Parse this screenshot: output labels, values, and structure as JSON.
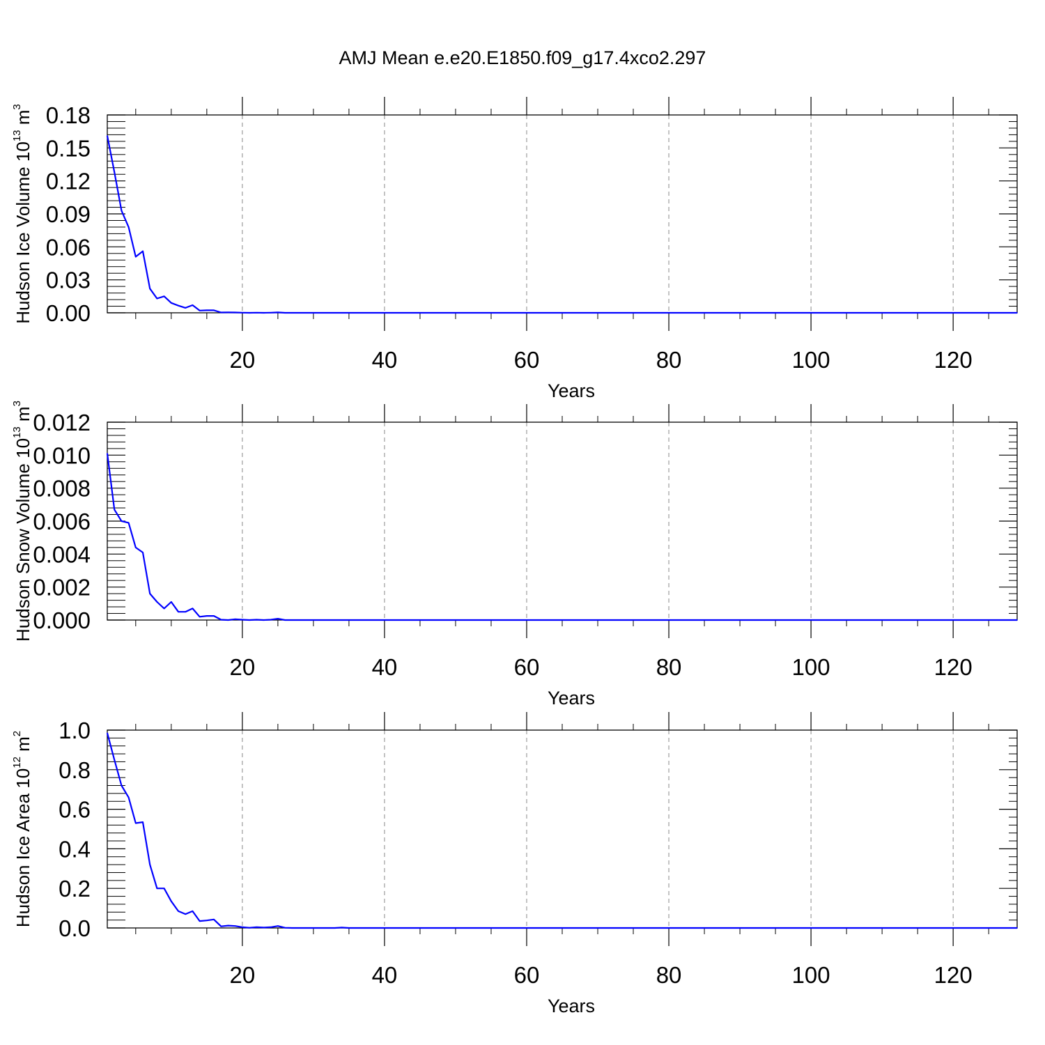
{
  "figure": {
    "title": "AMJ Mean e.e20.E1850.f09_g17.4xco2.297"
  },
  "colors": {
    "line": "#0000ff",
    "axes": "#000000",
    "grid": "#888888"
  },
  "chart_data": [
    {
      "type": "line",
      "xlabel": "Years",
      "ylabel": "Hudson Ice Volume 10",
      "ylabel_exponent": "13",
      "ylabel_unit": " m",
      "ylabel_unit_exponent": "3",
      "xlim": [
        1,
        129
      ],
      "ylim": [
        0,
        0.18
      ],
      "xticks": [
        20,
        40,
        60,
        80,
        100,
        120
      ],
      "yticks": [
        0,
        0.03,
        0.06,
        0.09,
        0.12,
        0.15,
        0.18
      ],
      "ytick_labels": [
        "0.00",
        "0.03",
        "0.06",
        "0.09",
        "0.12",
        "0.15",
        "0.18"
      ],
      "grid": "vertical dashed at major x ticks",
      "x": [
        1,
        2,
        3,
        4,
        5,
        6,
        7,
        8,
        9,
        10,
        11,
        12,
        13,
        14,
        15,
        16,
        17,
        18,
        19,
        20,
        21,
        22,
        23,
        24,
        25,
        26,
        27,
        28,
        29,
        30,
        129
      ],
      "values": [
        0.161,
        0.128,
        0.093,
        0.078,
        0.051,
        0.056,
        0.022,
        0.013,
        0.015,
        0.009,
        0.0065,
        0.0045,
        0.007,
        0.002,
        0.0023,
        0.0023,
        0.0003,
        0.0004,
        0.0003,
        0.0001,
        0.0,
        0.0001,
        0.0,
        0.0001,
        0.0004,
        0.0,
        0.0,
        0.0,
        0.0,
        0.0,
        0.0
      ]
    },
    {
      "type": "line",
      "xlabel": "Years",
      "ylabel": "Hudson Snow Volume 10",
      "ylabel_exponent": "13",
      "ylabel_unit": " m",
      "ylabel_unit_exponent": "3",
      "xlim": [
        1,
        129
      ],
      "ylim": [
        0,
        0.012
      ],
      "xticks": [
        20,
        40,
        60,
        80,
        100,
        120
      ],
      "yticks": [
        0,
        0.002,
        0.004,
        0.006,
        0.008,
        0.01,
        0.012
      ],
      "ytick_labels": [
        "0.000",
        "0.002",
        "0.004",
        "0.006",
        "0.008",
        "0.010",
        "0.012"
      ],
      "grid": "vertical dashed at major x ticks",
      "x": [
        1,
        2,
        3,
        4,
        5,
        6,
        7,
        8,
        9,
        10,
        11,
        12,
        13,
        14,
        15,
        16,
        17,
        18,
        19,
        20,
        21,
        22,
        23,
        24,
        25,
        26,
        27,
        28,
        29,
        30,
        129
      ],
      "values": [
        0.0101,
        0.0067,
        0.006,
        0.0059,
        0.0044,
        0.0041,
        0.0016,
        0.0011,
        0.0007,
        0.0011,
        0.0005,
        0.0005,
        0.0007,
        0.0002,
        0.00025,
        0.00025,
        2e-05,
        0.0,
        5e-05,
        2e-05,
        0.0,
        2e-05,
        0.0,
        2e-05,
        8e-05,
        0.0,
        0.0,
        0.0,
        0.0,
        0.0,
        0.0
      ]
    },
    {
      "type": "line",
      "xlabel": "Years",
      "ylabel": "Hudson Ice Area 10",
      "ylabel_exponent": "12",
      "ylabel_unit": " m",
      "ylabel_unit_exponent": "2",
      "xlim": [
        1,
        129
      ],
      "ylim": [
        0,
        1.0
      ],
      "xticks": [
        20,
        40,
        60,
        80,
        100,
        120
      ],
      "yticks": [
        0,
        0.2,
        0.4,
        0.6,
        0.8,
        1.0
      ],
      "ytick_labels": [
        "0.0",
        "0.2",
        "0.4",
        "0.6",
        "0.8",
        "1.0"
      ],
      "grid": "vertical dashed at major x ticks",
      "x": [
        1,
        2,
        3,
        4,
        5,
        6,
        7,
        8,
        9,
        10,
        11,
        12,
        13,
        14,
        15,
        16,
        17,
        18,
        19,
        20,
        21,
        22,
        23,
        24,
        25,
        26,
        27,
        28,
        29,
        30,
        33,
        34,
        35,
        129
      ],
      "values": [
        0.985,
        0.85,
        0.72,
        0.66,
        0.53,
        0.535,
        0.32,
        0.2,
        0.2,
        0.135,
        0.085,
        0.07,
        0.085,
        0.035,
        0.038,
        0.043,
        0.008,
        0.012,
        0.01,
        0.004,
        0.001,
        0.004,
        0.002,
        0.004,
        0.01,
        0.001,
        0.0,
        0.0,
        0.0,
        0.0,
        0.0,
        0.002,
        0.0,
        0.0
      ]
    }
  ]
}
